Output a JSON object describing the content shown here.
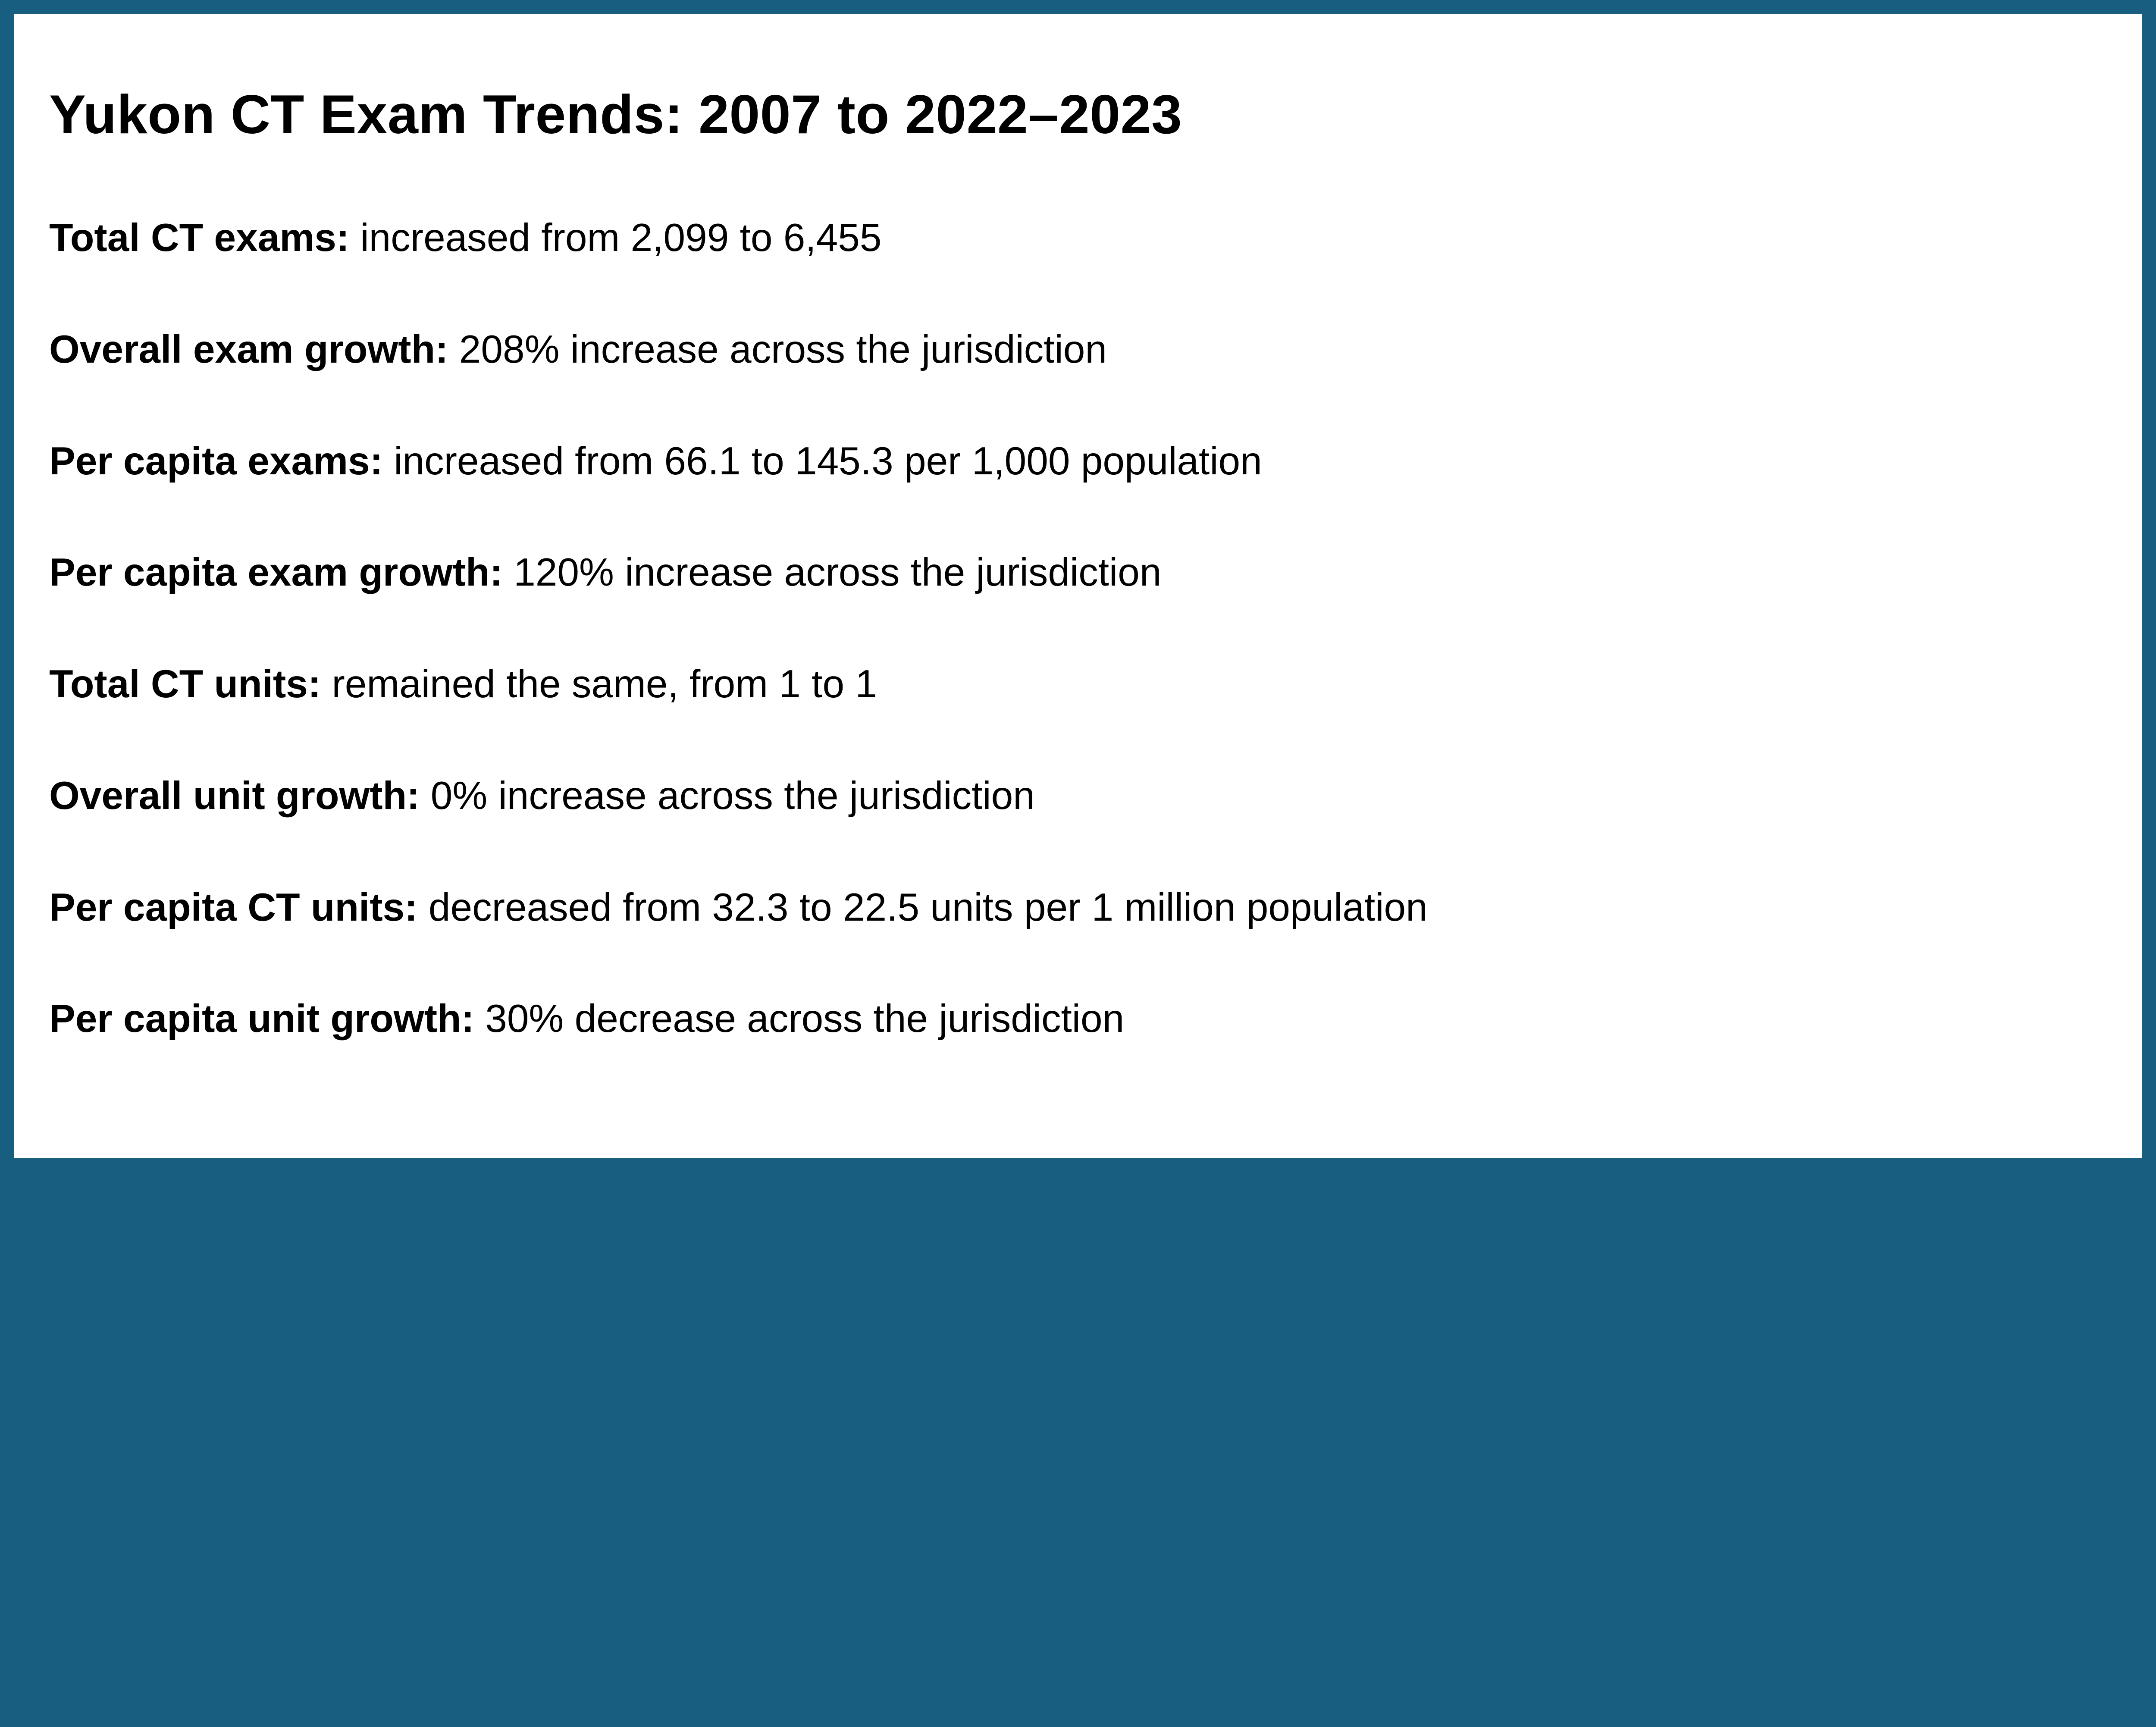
{
  "title": "Yukon CT Exam Trends: 2007 to 2022–2023",
  "stats": [
    {
      "label": "Total CT exams:",
      "text": "increased from 2,099 to 6,455"
    },
    {
      "label": "Overall exam growth:",
      "text": "208% increase across the jurisdiction"
    },
    {
      "label": "Per capita exams:",
      "text": "increased from 66.1 to 145.3 per 1,000 population"
    },
    {
      "label": "Per capita exam growth:",
      "text": "120% increase across the jurisdiction"
    },
    {
      "label": "Total CT units:",
      "text": "remained the same, from 1 to 1"
    },
    {
      "label": "Overall unit growth:",
      "text": "0% increase across the jurisdiction"
    },
    {
      "label": "Per capita CT units:",
      "text": "decreased from 32.3 to 22.5 units per 1 million population"
    },
    {
      "label": "Per capita unit growth:",
      "text": "30% decrease across the jurisdiction"
    }
  ],
  "colors": {
    "border": "#175E80",
    "background": "#FFFFFF",
    "text": "#000000"
  }
}
